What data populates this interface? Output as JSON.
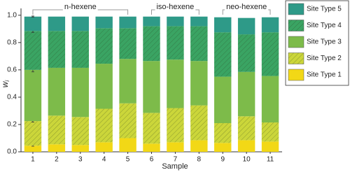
{
  "chart_data": {
    "type": "stacked_bar",
    "x_label": "Sample",
    "y_label": "w",
    "y_label_sub": "i",
    "categories": [
      "1",
      "2",
      "3",
      "4",
      "5",
      "6",
      "7",
      "8",
      "9",
      "10",
      "11"
    ],
    "series": [
      {
        "name": "Site Type 1",
        "color": "#f2d816",
        "hatch": false,
        "values": [
          0.045,
          0.055,
          0.05,
          0.07,
          0.1,
          0.06,
          0.07,
          0.085,
          0.065,
          0.085,
          0.075
        ],
        "errors": [
          0.004,
          null,
          null,
          null,
          null,
          null,
          null,
          null,
          null,
          null,
          null
        ]
      },
      {
        "name": "Site Type 2",
        "color": "#cbd63a",
        "hatch": true,
        "values": [
          0.18,
          0.21,
          0.205,
          0.245,
          0.255,
          0.225,
          0.25,
          0.255,
          0.145,
          0.175,
          0.14
        ],
        "errors": [
          0.008,
          null,
          null,
          null,
          null,
          null,
          null,
          null,
          null,
          null,
          null
        ]
      },
      {
        "name": "Site Type 3",
        "color": "#7dbb4a",
        "hatch": false,
        "values": [
          0.375,
          0.35,
          0.36,
          0.33,
          0.325,
          0.38,
          0.355,
          0.325,
          0.34,
          0.325,
          0.34
        ],
        "errors": [
          0.015,
          null,
          null,
          null,
          null,
          null,
          null,
          null,
          null,
          null,
          null
        ]
      },
      {
        "name": "Site Type 4",
        "color": "#3aa463",
        "hatch": true,
        "values": [
          0.285,
          0.27,
          0.27,
          0.26,
          0.225,
          0.255,
          0.245,
          0.255,
          0.325,
          0.275,
          0.32
        ],
        "errors": [
          0.01,
          null,
          null,
          null,
          null,
          null,
          null,
          null,
          null,
          null,
          null
        ]
      },
      {
        "name": "Site Type 5",
        "color": "#2e9a88",
        "hatch": false,
        "values": [
          0.105,
          0.105,
          0.105,
          0.085,
          0.085,
          0.07,
          0.07,
          0.07,
          0.11,
          0.12,
          0.11
        ],
        "errors": [
          0.004,
          null,
          null,
          null,
          null,
          null,
          null,
          null,
          null,
          null,
          null
        ]
      }
    ],
    "groups": [
      {
        "label": "n-hexene",
        "from": "1",
        "to": "5"
      },
      {
        "label": "iso-hexene",
        "from": "6",
        "to": "8"
      },
      {
        "label": "neo-hexene",
        "from": "9",
        "to": "11"
      }
    ],
    "ylim": [
      0,
      1.05
    ],
    "yticks": [
      {
        "value": 0,
        "label": "0.0"
      },
      {
        "value": 0.2,
        "label": "0.2"
      },
      {
        "value": 0.4,
        "label": "0.4"
      },
      {
        "value": 0.6,
        "label": "0.6"
      },
      {
        "value": 0.8,
        "label": "0.8"
      },
      {
        "value": 1.0,
        "label": "1.0"
      }
    ],
    "legend": "outside-top-right"
  }
}
